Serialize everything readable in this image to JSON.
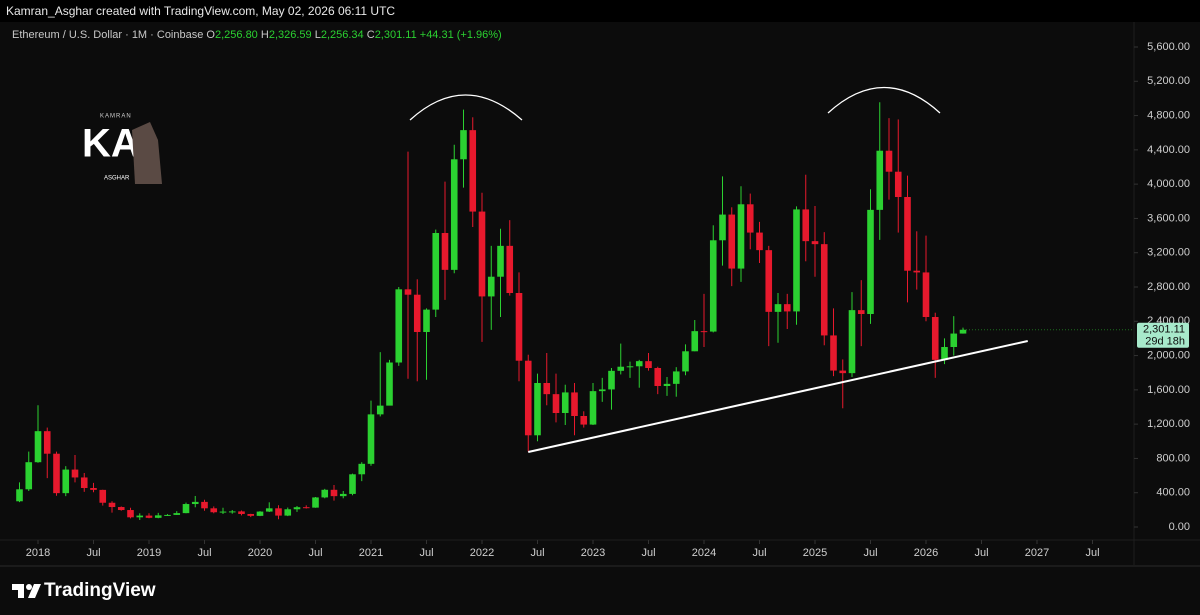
{
  "credit": "Kamran_Asghar created with TradingView.com, May 02, 2026 06:11 UTC",
  "brand": "TradingView",
  "logo": {
    "top": "KAMRAN",
    "big": "KA",
    "bottom": "ASGHAR"
  },
  "chart_data": {
    "type": "candlestick",
    "legend": {
      "symbol": "Ethereum / U.S. Dollar · 1M · Coinbase",
      "ohlc": [
        [
          "O",
          "2,256.80"
        ],
        [
          "H",
          "2,326.59"
        ],
        [
          "L",
          "2,256.34"
        ],
        [
          "C",
          "2,301.11"
        ]
      ],
      "change": "+44.31 (+1.96%)"
    },
    "up_color": "#2bd131",
    "down_color": "#e8192d",
    "x": [
      "2017-11",
      "2017-12",
      "2018-01",
      "2018-02",
      "2018-03",
      "2018-04",
      "2018-05",
      "2018-06",
      "2018-07",
      "2018-08",
      "2018-09",
      "2018-10",
      "2018-11",
      "2018-12",
      "2019-01",
      "2019-02",
      "2019-03",
      "2019-04",
      "2019-05",
      "2019-06",
      "2019-07",
      "2019-08",
      "2019-09",
      "2019-10",
      "2019-11",
      "2019-12",
      "2020-01",
      "2020-02",
      "2020-03",
      "2020-04",
      "2020-05",
      "2020-06",
      "2020-07",
      "2020-08",
      "2020-09",
      "2020-10",
      "2020-11",
      "2020-12",
      "2021-01",
      "2021-02",
      "2021-03",
      "2021-04",
      "2021-05",
      "2021-06",
      "2021-07",
      "2021-08",
      "2021-09",
      "2021-10",
      "2021-11",
      "2021-12",
      "2022-01",
      "2022-02",
      "2022-03",
      "2022-04",
      "2022-05",
      "2022-06",
      "2022-07",
      "2022-08",
      "2022-09",
      "2022-10",
      "2022-11",
      "2022-12",
      "2023-01",
      "2023-02",
      "2023-03",
      "2023-04",
      "2023-05",
      "2023-06",
      "2023-07",
      "2023-08",
      "2023-09",
      "2023-10",
      "2023-11",
      "2023-12",
      "2024-01",
      "2024-02",
      "2024-03",
      "2024-04",
      "2024-05",
      "2024-06",
      "2024-07",
      "2024-08",
      "2024-09",
      "2024-10",
      "2024-11",
      "2024-12",
      "2025-01",
      "2025-02",
      "2025-03",
      "2025-04",
      "2025-05",
      "2025-06",
      "2025-07",
      "2025-08",
      "2025-09",
      "2025-10",
      "2025-11",
      "2025-12",
      "2026-01",
      "2026-02",
      "2026-03",
      "2026-04",
      "2026-05"
    ],
    "ohlc": [
      [
        300,
        520,
        290,
        440
      ],
      [
        440,
        880,
        420,
        756
      ],
      [
        756,
        1420,
        750,
        1118
      ],
      [
        1118,
        1160,
        570,
        855
      ],
      [
        855,
        880,
        365,
        395
      ],
      [
        395,
        710,
        360,
        670
      ],
      [
        670,
        840,
        520,
        578
      ],
      [
        578,
        630,
        410,
        455
      ],
      [
        455,
        515,
        405,
        433
      ],
      [
        433,
        435,
        250,
        283
      ],
      [
        283,
        300,
        168,
        233
      ],
      [
        233,
        240,
        190,
        198
      ],
      [
        198,
        225,
        100,
        113
      ],
      [
        113,
        160,
        82,
        133
      ],
      [
        133,
        160,
        102,
        107
      ],
      [
        107,
        165,
        102,
        136
      ],
      [
        136,
        150,
        128,
        141
      ],
      [
        141,
        185,
        140,
        162
      ],
      [
        162,
        285,
        160,
        268
      ],
      [
        268,
        362,
        230,
        293
      ],
      [
        293,
        318,
        190,
        218
      ],
      [
        218,
        240,
        160,
        172
      ],
      [
        172,
        225,
        152,
        180
      ],
      [
        180,
        198,
        155,
        182
      ],
      [
        182,
        192,
        135,
        152
      ],
      [
        152,
        154,
        116,
        130
      ],
      [
        130,
        185,
        127,
        180
      ],
      [
        180,
        288,
        175,
        218
      ],
      [
        218,
        254,
        90,
        133
      ],
      [
        133,
        227,
        127,
        207
      ],
      [
        207,
        245,
        176,
        231
      ],
      [
        231,
        253,
        215,
        226
      ],
      [
        226,
        350,
        225,
        345
      ],
      [
        345,
        445,
        335,
        434
      ],
      [
        434,
        490,
        308,
        360
      ],
      [
        360,
        420,
        335,
        386
      ],
      [
        386,
        623,
        370,
        615
      ],
      [
        615,
        756,
        535,
        737
      ],
      [
        737,
        1475,
        715,
        1314
      ],
      [
        1314,
        2040,
        1290,
        1416
      ],
      [
        1416,
        1950,
        1430,
        1919
      ],
      [
        1919,
        2800,
        1880,
        2773
      ],
      [
        2773,
        4380,
        1730,
        2710
      ],
      [
        2710,
        2890,
        1700,
        2275
      ],
      [
        2275,
        2550,
        1718,
        2536
      ],
      [
        2536,
        3470,
        2450,
        3430
      ],
      [
        3430,
        4030,
        2650,
        3000
      ],
      [
        3000,
        4460,
        2960,
        4290
      ],
      [
        4290,
        4870,
        3960,
        4630
      ],
      [
        4630,
        4780,
        3500,
        3680
      ],
      [
        3680,
        3900,
        2160,
        2690
      ],
      [
        2690,
        3280,
        2300,
        2920
      ],
      [
        2920,
        3480,
        2450,
        3280
      ],
      [
        3280,
        3580,
        2700,
        2730
      ],
      [
        2730,
        2970,
        1700,
        1940
      ],
      [
        1940,
        2010,
        880,
        1070
      ],
      [
        1070,
        1790,
        1000,
        1680
      ],
      [
        1680,
        2030,
        1420,
        1550
      ],
      [
        1550,
        1790,
        1220,
        1330
      ],
      [
        1330,
        1660,
        1190,
        1570
      ],
      [
        1570,
        1680,
        1070,
        1295
      ],
      [
        1295,
        1350,
        1160,
        1195
      ],
      [
        1195,
        1680,
        1190,
        1585
      ],
      [
        1585,
        1740,
        1460,
        1605
      ],
      [
        1605,
        1855,
        1370,
        1822
      ],
      [
        1822,
        2140,
        1780,
        1870
      ],
      [
        1870,
        1930,
        1740,
        1875
      ],
      [
        1875,
        1950,
        1625,
        1935
      ],
      [
        1935,
        2030,
        1825,
        1855
      ],
      [
        1855,
        1870,
        1550,
        1645
      ],
      [
        1645,
        1750,
        1530,
        1670
      ],
      [
        1670,
        1865,
        1520,
        1815
      ],
      [
        1815,
        2130,
        1770,
        2050
      ],
      [
        2050,
        2415,
        2050,
        2285
      ],
      [
        2285,
        2720,
        2100,
        2280
      ],
      [
        2280,
        3520,
        2270,
        3345
      ],
      [
        3345,
        4090,
        3050,
        3645
      ],
      [
        3645,
        3730,
        2810,
        3015
      ],
      [
        3015,
        3975,
        2860,
        3765
      ],
      [
        3765,
        3890,
        3240,
        3435
      ],
      [
        3435,
        3560,
        3080,
        3230
      ],
      [
        3230,
        3280,
        2110,
        2510
      ],
      [
        2510,
        2730,
        2150,
        2600
      ],
      [
        2600,
        2720,
        2310,
        2515
      ],
      [
        2515,
        3740,
        2360,
        3705
      ],
      [
        3705,
        4110,
        3100,
        3335
      ],
      [
        3335,
        3745,
        2920,
        3300
      ],
      [
        3300,
        3440,
        2120,
        2235
      ],
      [
        2235,
        2550,
        1760,
        1825
      ],
      [
        1825,
        1955,
        1385,
        1795
      ],
      [
        1795,
        2740,
        1750,
        2530
      ],
      [
        2530,
        2880,
        2110,
        2485
      ],
      [
        2485,
        3940,
        2370,
        3700
      ],
      [
        3700,
        4955,
        3350,
        4390
      ],
      [
        4390,
        4770,
        3820,
        4145
      ],
      [
        4145,
        4755,
        3435,
        3850
      ],
      [
        3850,
        4100,
        2620,
        2990
      ],
      [
        2990,
        3450,
        2770,
        2970
      ],
      [
        2970,
        3400,
        2400,
        2450
      ],
      [
        2450,
        2500,
        1740,
        1950
      ],
      [
        1950,
        2200,
        1900,
        2100
      ],
      [
        2100,
        2460,
        2000,
        2256.8
      ],
      [
        2256.8,
        2326.59,
        2256.34,
        2301.11
      ]
    ],
    "ylim": [
      0,
      5600
    ],
    "yticks": [
      {
        "value": 0,
        "label": "0.00"
      },
      {
        "value": 400,
        "label": "400.00"
      },
      {
        "value": 800,
        "label": "800.00"
      },
      {
        "value": 1200,
        "label": "1,200.00"
      },
      {
        "value": 1600,
        "label": "1,600.00"
      },
      {
        "value": 2000,
        "label": "2,000.00"
      },
      {
        "value": 2400,
        "label": "2,400.00"
      },
      {
        "value": 2800,
        "label": "2,800.00"
      },
      {
        "value": 3200,
        "label": "3,200.00"
      },
      {
        "value": 3600,
        "label": "3,600.00"
      },
      {
        "value": 4000,
        "label": "4,000.00"
      },
      {
        "value": 4400,
        "label": "4,400.00"
      },
      {
        "value": 4800,
        "label": "4,800.00"
      },
      {
        "value": 5200,
        "label": "5,200.00"
      },
      {
        "value": 5600,
        "label": "5,600.00"
      }
    ],
    "xticks": [
      {
        "value": "2018-01",
        "label": "2018"
      },
      {
        "value": "2018-07",
        "label": "Jul"
      },
      {
        "value": "2019-01",
        "label": "2019"
      },
      {
        "value": "2019-07",
        "label": "Jul"
      },
      {
        "value": "2020-01",
        "label": "2020"
      },
      {
        "value": "2020-07",
        "label": "Jul"
      },
      {
        "value": "2021-01",
        "label": "2021"
      },
      {
        "value": "2021-07",
        "label": "Jul"
      },
      {
        "value": "2022-01",
        "label": "2022"
      },
      {
        "value": "2022-07",
        "label": "Jul"
      },
      {
        "value": "2023-01",
        "label": "2023"
      },
      {
        "value": "2023-07",
        "label": "Jul"
      },
      {
        "value": "2024-01",
        "label": "2024"
      },
      {
        "value": "2024-07",
        "label": "Jul"
      },
      {
        "value": "2025-01",
        "label": "2025"
      },
      {
        "value": "2025-07",
        "label": "Jul"
      },
      {
        "value": "2026-01",
        "label": "2026"
      },
      {
        "value": "2026-07",
        "label": "Jul"
      },
      {
        "value": "2027-01",
        "label": "2027"
      },
      {
        "value": "2027-07",
        "label": "Jul"
      }
    ],
    "grid": false,
    "last_price": {
      "value": 2301.11,
      "label": "2,301.11",
      "countdown": "29d 18h"
    },
    "trendline": {
      "x": [
        "2022-06",
        "2026-12"
      ],
      "y": [
        875,
        2170
      ],
      "color": "#ffffff"
    }
  }
}
